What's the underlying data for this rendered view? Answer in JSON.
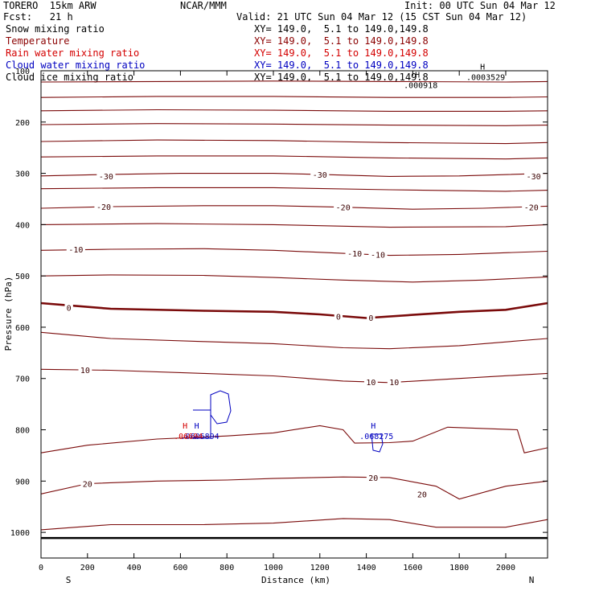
{
  "header": {
    "model": "TORERO  15km ARW",
    "center": "NCAR/MMM",
    "init": "Init: 00 UTC Sun 04 Mar 12",
    "fcst": "Fcst:   21 h",
    "valid": "Valid: 21 UTC Sun 04 Mar 12 (15 CST Sun 04 Mar 12)"
  },
  "fields": [
    {
      "name": "Snow mixing ratio",
      "xy": "XY= 149.0,  5.1 to 149.0,149.8",
      "color": "#000000"
    },
    {
      "name": "Temperature",
      "xy": "XY= 149.0,  5.1 to 149.0,149.8",
      "color": "#8b0000"
    },
    {
      "name": "Rain water mixing ratio",
      "xy": "XY= 149.0,  5.1 to 149.0,149.8",
      "color": "#d40000"
    },
    {
      "name": "Cloud water mixing ratio",
      "xy": "XY= 149.0,  5.1 to 149.0,149.8",
      "color": "#0000c0"
    },
    {
      "name": "Cloud ice mixing ratio",
      "xy": "XY= 149.0,  5.1 to 149.0,149.8",
      "color": "#000000"
    }
  ],
  "chart_data": {
    "type": "line",
    "xlabel": "Distance (km)",
    "ylabel": "Pressure (hPa)",
    "xlim": [
      0,
      2180
    ],
    "ylim": [
      1050,
      100
    ],
    "xticks": [
      0,
      200,
      400,
      600,
      800,
      1000,
      1200,
      1400,
      1600,
      1800,
      2000
    ],
    "yticks": [
      1000,
      900,
      800,
      700,
      600,
      500,
      400,
      300,
      200,
      100
    ],
    "endpoints": {
      "left": "S",
      "right": "N"
    },
    "temperature_contours": [
      {
        "level": -60,
        "x": [
          0,
          500,
          1000,
          1500,
          2000,
          2180
        ],
        "p": [
          122,
          121,
          120,
          121,
          122,
          121
        ]
      },
      {
        "level": -55,
        "x": [
          0,
          500,
          1000,
          1500,
          2000,
          2180
        ],
        "p": [
          152,
          150,
          150,
          152,
          152,
          151
        ]
      },
      {
        "level": -50,
        "x": [
          0,
          500,
          1000,
          1500,
          2000,
          2180
        ],
        "p": [
          178,
          176,
          177,
          179,
          179,
          178
        ]
      },
      {
        "level": -45,
        "x": [
          0,
          500,
          1000,
          1500,
          2000,
          2180
        ],
        "p": [
          205,
          203,
          204,
          206,
          207,
          206
        ]
      },
      {
        "level": -40,
        "x": [
          0,
          500,
          1000,
          1500,
          2000,
          2180
        ],
        "p": [
          238,
          235,
          236,
          240,
          242,
          240
        ]
      },
      {
        "level": -35,
        "x": [
          0,
          500,
          1000,
          1500,
          2000,
          2180
        ],
        "p": [
          268,
          266,
          266,
          270,
          272,
          270
        ]
      },
      {
        "level": -30,
        "x": [
          0,
          300,
          600,
          1000,
          1200,
          1500,
          1800,
          2180
        ],
        "p": [
          305,
          302,
          300,
          300,
          302,
          306,
          305,
          300
        ]
      },
      {
        "level": -25,
        "x": [
          0,
          500,
          1000,
          1500,
          2000,
          2180
        ],
        "p": [
          330,
          328,
          328,
          332,
          335,
          333
        ]
      },
      {
        "level": -20,
        "x": [
          0,
          300,
          700,
          1000,
          1300,
          1600,
          1900,
          2180
        ],
        "p": [
          368,
          365,
          363,
          363,
          366,
          370,
          368,
          364
        ]
      },
      {
        "level": -15,
        "x": [
          0,
          500,
          1000,
          1500,
          2000,
          2180
        ],
        "p": [
          400,
          398,
          400,
          405,
          404,
          400
        ]
      },
      {
        "level": -10,
        "x": [
          0,
          300,
          700,
          1000,
          1300,
          1500,
          1800,
          2180
        ],
        "p": [
          450,
          448,
          447,
          450,
          456,
          460,
          458,
          452
        ]
      },
      {
        "level": -5,
        "x": [
          0,
          300,
          700,
          1000,
          1300,
          1600,
          1900,
          2180
        ],
        "p": [
          500,
          498,
          499,
          503,
          508,
          512,
          508,
          502
        ]
      },
      {
        "level": 0,
        "x": [
          0,
          300,
          700,
          1000,
          1200,
          1400,
          1600,
          1800,
          2000,
          2180
        ],
        "p": [
          553,
          564,
          568,
          570,
          575,
          582,
          576,
          570,
          566,
          553
        ]
      },
      {
        "level": 5,
        "x": [
          0,
          300,
          700,
          1000,
          1300,
          1500,
          1800,
          2180
        ],
        "p": [
          610,
          622,
          628,
          632,
          640,
          642,
          636,
          622
        ]
      },
      {
        "level": 10,
        "x": [
          0,
          300,
          700,
          1000,
          1300,
          1500,
          1800,
          2180
        ],
        "p": [
          682,
          684,
          690,
          695,
          705,
          708,
          700,
          690
        ]
      },
      {
        "level": 15,
        "x": [
          0,
          200,
          500,
          800,
          1000,
          1200,
          1300,
          1350,
          1500,
          1600,
          1750,
          2050,
          2080,
          2180
        ],
        "p": [
          845,
          830,
          818,
          812,
          806,
          792,
          800,
          826,
          825,
          822,
          795,
          800,
          845,
          835
        ]
      },
      {
        "level": 20,
        "x": [
          0,
          200,
          500,
          800,
          1000,
          1300,
          1500,
          1700,
          1800,
          2000,
          2180
        ],
        "p": [
          925,
          905,
          900,
          898,
          895,
          892,
          893,
          910,
          935,
          910,
          900
        ]
      },
      {
        "level": 25,
        "x": [
          0,
          300,
          700,
          1000,
          1300,
          1500,
          1700,
          2000,
          2180
        ],
        "p": [
          995,
          985,
          985,
          982,
          973,
          975,
          990,
          990,
          975
        ]
      }
    ],
    "temperature_labels": [
      {
        "text": "-30",
        "x": 280,
        "p": 305
      },
      {
        "text": "-30",
        "x": 1200,
        "p": 302
      },
      {
        "text": "-30",
        "x": 2120,
        "p": 305
      },
      {
        "text": "-20",
        "x": 270,
        "p": 365
      },
      {
        "text": "-20",
        "x": 1300,
        "p": 366
      },
      {
        "text": "-20",
        "x": 2110,
        "p": 366
      },
      {
        "text": "-10",
        "x": 150,
        "p": 448
      },
      {
        "text": "-10",
        "x": 1350,
        "p": 456
      },
      {
        "text": "-10",
        "x": 1450,
        "p": 458
      },
      {
        "text": "0",
        "x": 120,
        "p": 562
      },
      {
        "text": "0",
        "x": 1280,
        "p": 579
      },
      {
        "text": "0",
        "x": 1420,
        "p": 581
      },
      {
        "text": "10",
        "x": 190,
        "p": 683
      },
      {
        "text": "10",
        "x": 1420,
        "p": 707
      },
      {
        "text": "10",
        "x": 1520,
        "p": 707
      },
      {
        "text": "20",
        "x": 200,
        "p": 905
      },
      {
        "text": "20",
        "x": 1430,
        "p": 893
      },
      {
        "text": "20",
        "x": 1640,
        "p": 925
      }
    ],
    "cloud_water_maxima": [
      {
        "marker": "H",
        "value": ".068275",
        "x": 1430,
        "p": 810
      },
      {
        "marker": "H",
        "value": ".0606894",
        "x": 670,
        "p": 810
      }
    ],
    "rain_water_maxima": [
      {
        "marker": "H",
        "value": ".06694",
        "x": 620,
        "p": 810
      }
    ],
    "cloud_ice_maxima": [
      {
        "marker": "H",
        "value": ".000918",
        "x": 1620,
        "p": 126
      },
      {
        "marker": "H",
        "value": ".0003529",
        "x": 1900,
        "p": 110
      }
    ],
    "surface_pressure_hpa": 1011
  }
}
